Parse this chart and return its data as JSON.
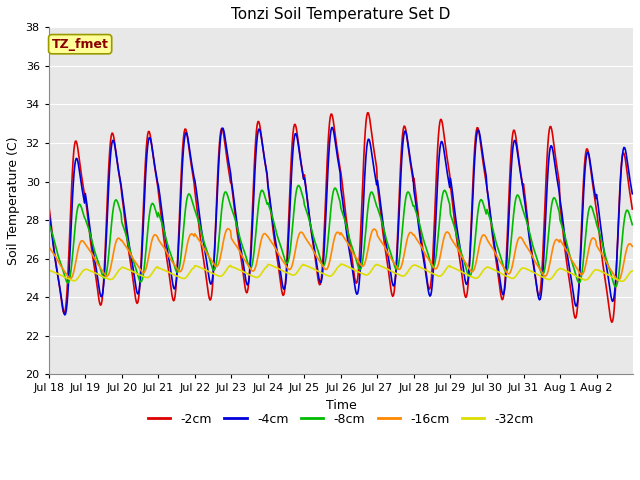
{
  "title": "Tonzi Soil Temperature Set D",
  "xlabel": "Time",
  "ylabel": "Soil Temperature (C)",
  "annotation_text": "TZ_fmet",
  "annotation_color": "#8B0000",
  "annotation_bg": "#FFFF99",
  "annotation_border": "#999900",
  "ylim": [
    20,
    38
  ],
  "yticks": [
    20,
    22,
    24,
    26,
    28,
    30,
    32,
    34,
    36,
    38
  ],
  "fig_bg": "#FFFFFF",
  "plot_bg": "#E8E8E8",
  "grid_color": "#FFFFFF",
  "series_colors": {
    "-2cm": "#DD0000",
    "-4cm": "#0000DD",
    "-8cm": "#00BB00",
    "-16cm": "#FF8800",
    "-32cm": "#DDDD00"
  },
  "xtick_labels": [
    "Jul 18",
    "Jul 19",
    "Jul 20",
    "Jul 21",
    "Jul 22",
    "Jul 23",
    "Jul 24",
    "Jul 25",
    "Jul 26",
    "Jul 27",
    "Jul 28",
    "Jul 29",
    "Jul 30",
    "Jul 31",
    "Aug 1",
    "Aug 2"
  ],
  "n_days": 16,
  "pts_per_day": 144,
  "title_fontsize": 11,
  "legend_fontsize": 9,
  "tick_fontsize": 8,
  "lw": 1.2
}
